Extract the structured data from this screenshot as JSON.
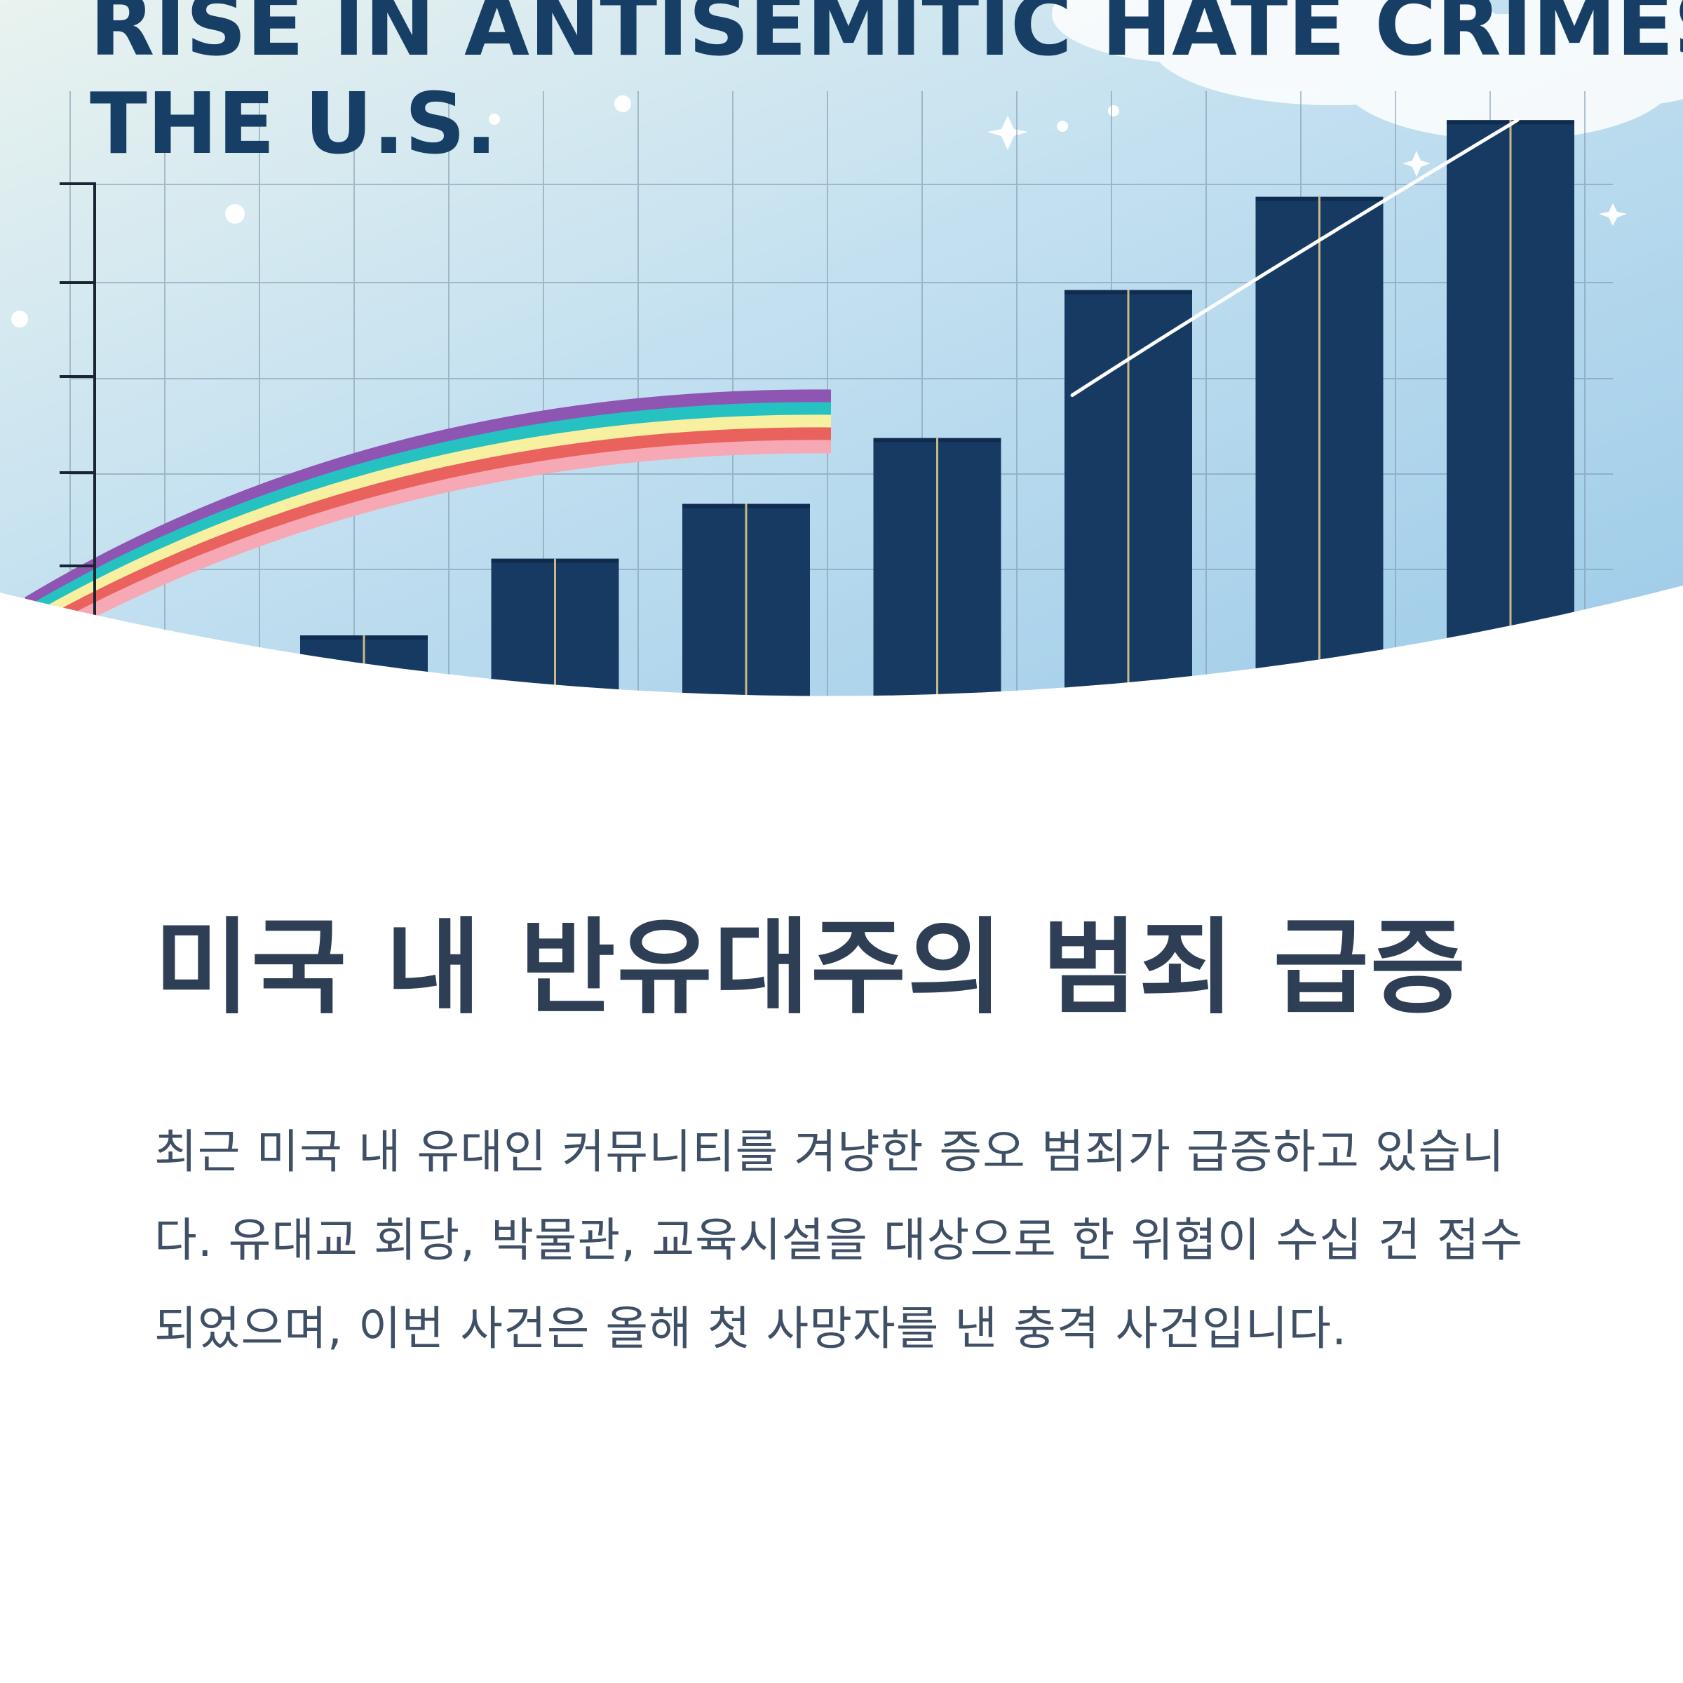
{
  "hero": {
    "title_line_1": "RISE IN ANTISEMITIC HATE CRIMES IN",
    "title_line_2": "THE U.S.",
    "bar_color": "#173a63",
    "sky_color": "#bcdcf0",
    "rainbow_colors": [
      "#8e55b3",
      "#26c2c2",
      "#f7f0a0",
      "#e9625d",
      "#f6a9b4"
    ]
  },
  "chart_data": {
    "type": "bar",
    "series": [
      {
        "values": [
          12,
          26,
          36,
          48,
          75,
          92,
          106
        ]
      }
    ],
    "ylim": [
      0,
      110
    ],
    "grid": true
  },
  "article": {
    "headline": "미국 내 반유대주의 범죄 급증",
    "body": "최근 미국 내 유대인 커뮤니티를 겨냥한 증오 범죄가 급증하고 있습니다. 유대교 회당, 박물관, 교육시설을 대상으로 한 위협이 수십 건 접수되었으며, 이번 사건은 올해 첫 사망자를 낸 충격 사건입니다."
  }
}
